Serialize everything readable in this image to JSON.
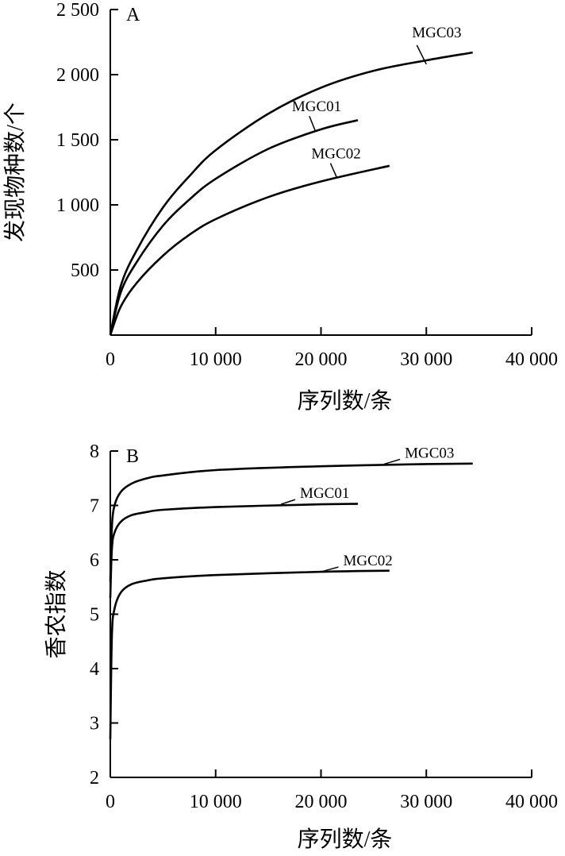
{
  "chart_data": [
    {
      "panel": "A",
      "type": "line",
      "xlabel": "序列数/条",
      "ylabel": "发现物种数/个",
      "xlim": [
        0,
        40000
      ],
      "ylim": [
        0,
        2500
      ],
      "x_ticks": [
        0,
        10000,
        20000,
        30000,
        40000
      ],
      "x_tick_labels": [
        "0",
        "10 000",
        "20 000",
        "30 000",
        "40 000"
      ],
      "y_ticks": [
        500,
        1000,
        1500,
        2000,
        2500
      ],
      "y_tick_labels": [
        "500",
        "1 000",
        "1 500",
        "2 000",
        "2 500"
      ],
      "series": [
        {
          "name": "MGC03",
          "x": [
            0,
            1000,
            2500,
            5000,
            7500,
            10000,
            15000,
            20000,
            25000,
            30000,
            34400
          ],
          "y": [
            0,
            380,
            650,
            980,
            1220,
            1420,
            1700,
            1900,
            2030,
            2110,
            2170
          ]
        },
        {
          "name": "MGC01",
          "x": [
            0,
            1000,
            2500,
            5000,
            7500,
            10000,
            15000,
            20000,
            23500
          ],
          "y": [
            0,
            330,
            560,
            840,
            1040,
            1200,
            1430,
            1580,
            1650
          ]
        },
        {
          "name": "MGC02",
          "x": [
            0,
            1000,
            2500,
            5000,
            7500,
            10000,
            15000,
            20000,
            26500
          ],
          "y": [
            0,
            220,
            400,
            610,
            770,
            890,
            1060,
            1180,
            1300
          ]
        }
      ]
    },
    {
      "panel": "B",
      "type": "line",
      "xlabel": "序列数/条",
      "ylabel": "香农指数",
      "xlim": [
        0,
        40000
      ],
      "ylim": [
        2,
        8
      ],
      "x_ticks": [
        0,
        10000,
        20000,
        30000,
        40000
      ],
      "x_tick_labels": [
        "0",
        "10 000",
        "20 000",
        "30 000",
        "40 000"
      ],
      "y_ticks": [
        2,
        3,
        4,
        5,
        6,
        7,
        8
      ],
      "y_tick_labels": [
        "2",
        "3",
        "4",
        "5",
        "6",
        "7",
        "8"
      ],
      "series": [
        {
          "name": "MGC03",
          "x": [
            0,
            150,
            400,
            1000,
            2000,
            3500,
            5000,
            10000,
            20000,
            30000,
            34400
          ],
          "y": [
            5.6,
            6.6,
            7.0,
            7.25,
            7.4,
            7.5,
            7.55,
            7.65,
            7.72,
            7.76,
            7.77
          ]
        },
        {
          "name": "MGC01",
          "x": [
            0,
            150,
            400,
            1000,
            2000,
            3500,
            5000,
            10000,
            20000,
            23500
          ],
          "y": [
            5.3,
            6.2,
            6.5,
            6.7,
            6.82,
            6.88,
            6.92,
            6.97,
            7.02,
            7.03
          ]
        },
        {
          "name": "MGC02",
          "x": [
            0,
            150,
            400,
            1000,
            2000,
            3500,
            5000,
            10000,
            20000,
            26500
          ],
          "y": [
            2.7,
            4.6,
            5.1,
            5.4,
            5.55,
            5.62,
            5.66,
            5.72,
            5.78,
            5.8
          ]
        }
      ]
    }
  ]
}
